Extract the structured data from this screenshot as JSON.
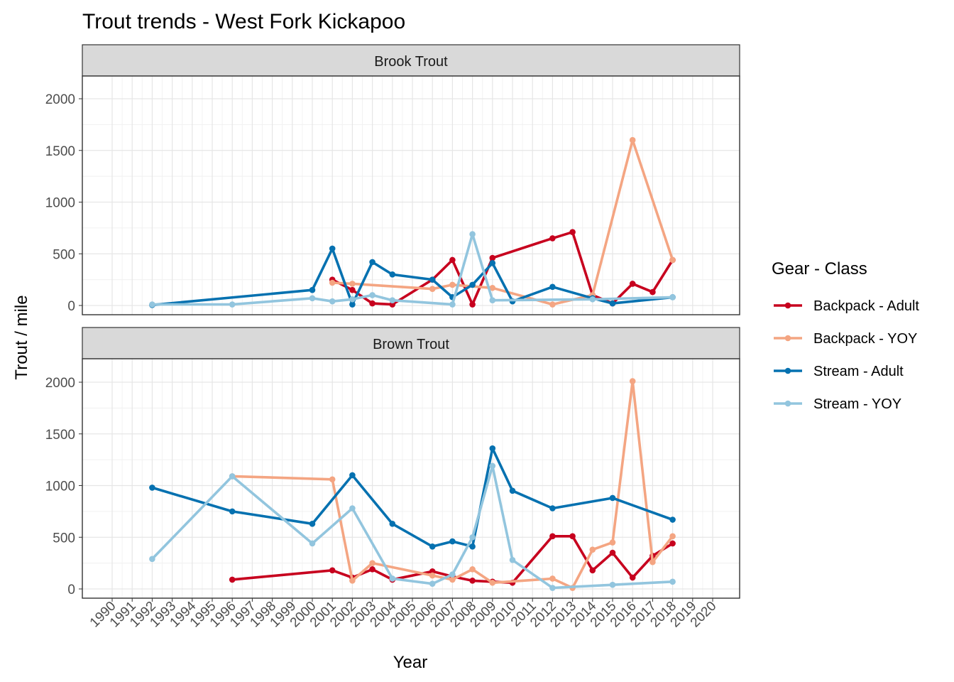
{
  "title": "Trout trends - West Fork Kickapoo",
  "colors": {
    "Backpack - Adult": "#c7001e",
    "Backpack - YOY": "#f4a582",
    "Stream - Adult": "#0571b0",
    "Stream - YOY": "#92c5de"
  },
  "chart_data": {
    "type": "line",
    "xlabel": "Year",
    "ylabel": "Trout / mile",
    "xlim": [
      1990,
      2020
    ],
    "ylim": [
      0,
      2000
    ],
    "x_ticks": [
      1990,
      1991,
      1992,
      1993,
      1994,
      1995,
      1996,
      1997,
      1998,
      1999,
      2000,
      2001,
      2002,
      2003,
      2004,
      2005,
      2006,
      2007,
      2008,
      2009,
      2010,
      2011,
      2012,
      2013,
      2014,
      2015,
      2016,
      2017,
      2018,
      2019,
      2020
    ],
    "y_ticks": [
      0,
      500,
      1000,
      1500,
      2000
    ],
    "grid": true,
    "legend": {
      "title": "Gear - Class",
      "position": "right",
      "entries": [
        "Backpack - Adult",
        "Backpack - YOY",
        "Stream - Adult",
        "Stream - YOY"
      ]
    },
    "panels": [
      {
        "name": "Brook Trout",
        "series": [
          {
            "name": "Backpack - Adult",
            "points": [
              [
                2001,
                250
              ],
              [
                2002,
                150
              ],
              [
                2003,
                20
              ],
              [
                2004,
                10
              ],
              [
                2006,
                250
              ],
              [
                2007,
                440
              ],
              [
                2008,
                10
              ],
              [
                2009,
                460
              ],
              [
                2012,
                650
              ],
              [
                2013,
                710
              ],
              [
                2014,
                100
              ],
              [
                2015,
                20
              ],
              [
                2016,
                210
              ],
              [
                2017,
                130
              ],
              [
                2018,
                440
              ]
            ]
          },
          {
            "name": "Backpack - YOY",
            "points": [
              [
                2001,
                220
              ],
              [
                2002,
                210
              ],
              [
                2006,
                160
              ],
              [
                2007,
                200
              ],
              [
                2009,
                170
              ],
              [
                2012,
                10
              ],
              [
                2014,
                100
              ],
              [
                2016,
                1600
              ],
              [
                2018,
                440
              ]
            ]
          },
          {
            "name": "Stream - Adult",
            "points": [
              [
                1992,
                5
              ],
              [
                2000,
                150
              ],
              [
                2001,
                550
              ],
              [
                2002,
                10
              ],
              [
                2003,
                420
              ],
              [
                2004,
                300
              ],
              [
                2006,
                250
              ],
              [
                2007,
                80
              ],
              [
                2008,
                200
              ],
              [
                2009,
                410
              ],
              [
                2010,
                40
              ],
              [
                2012,
                180
              ],
              [
                2014,
                70
              ],
              [
                2015,
                20
              ],
              [
                2018,
                80
              ]
            ]
          },
          {
            "name": "Stream - YOY",
            "points": [
              [
                1992,
                10
              ],
              [
                1996,
                10
              ],
              [
                2000,
                70
              ],
              [
                2001,
                40
              ],
              [
                2002,
                60
              ],
              [
                2003,
                100
              ],
              [
                2004,
                50
              ],
              [
                2007,
                10
              ],
              [
                2008,
                690
              ],
              [
                2009,
                50
              ],
              [
                2014,
                60
              ],
              [
                2018,
                80
              ]
            ]
          }
        ]
      },
      {
        "name": "Brown Trout",
        "series": [
          {
            "name": "Backpack - Adult",
            "points": [
              [
                1996,
                90
              ],
              [
                2001,
                180
              ],
              [
                2002,
                110
              ],
              [
                2003,
                190
              ],
              [
                2004,
                90
              ],
              [
                2006,
                170
              ],
              [
                2007,
                120
              ],
              [
                2008,
                80
              ],
              [
                2009,
                70
              ],
              [
                2010,
                60
              ],
              [
                2012,
                510
              ],
              [
                2013,
                510
              ],
              [
                2014,
                180
              ],
              [
                2015,
                350
              ],
              [
                2016,
                110
              ],
              [
                2017,
                320
              ],
              [
                2018,
                440
              ]
            ]
          },
          {
            "name": "Backpack - YOY",
            "points": [
              [
                1996,
                1090
              ],
              [
                2001,
                1060
              ],
              [
                2002,
                80
              ],
              [
                2003,
                250
              ],
              [
                2006,
                130
              ],
              [
                2007,
                90
              ],
              [
                2008,
                190
              ],
              [
                2009,
                60
              ],
              [
                2012,
                100
              ],
              [
                2013,
                10
              ],
              [
                2014,
                380
              ],
              [
                2015,
                450
              ],
              [
                2016,
                2010
              ],
              [
                2017,
                260
              ],
              [
                2018,
                510
              ]
            ]
          },
          {
            "name": "Stream - Adult",
            "points": [
              [
                1992,
                980
              ],
              [
                1996,
                750
              ],
              [
                2000,
                630
              ],
              [
                2002,
                1100
              ],
              [
                2004,
                630
              ],
              [
                2006,
                410
              ],
              [
                2007,
                460
              ],
              [
                2008,
                410
              ],
              [
                2009,
                1360
              ],
              [
                2010,
                950
              ],
              [
                2012,
                780
              ],
              [
                2015,
                880
              ],
              [
                2018,
                670
              ]
            ]
          },
          {
            "name": "Stream - YOY",
            "points": [
              [
                1992,
                290
              ],
              [
                1996,
                1090
              ],
              [
                2000,
                440
              ],
              [
                2002,
                780
              ],
              [
                2004,
                100
              ],
              [
                2006,
                50
              ],
              [
                2007,
                140
              ],
              [
                2008,
                500
              ],
              [
                2009,
                1190
              ],
              [
                2010,
                280
              ],
              [
                2012,
                10
              ],
              [
                2015,
                40
              ],
              [
                2018,
                70
              ]
            ]
          }
        ]
      }
    ]
  }
}
